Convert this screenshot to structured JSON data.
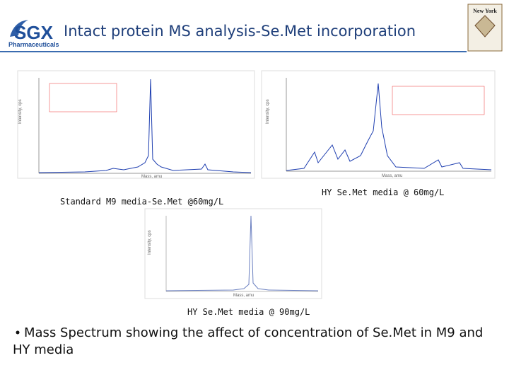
{
  "header": {
    "logo": "SGX",
    "logo_sub": "Pharmaceuticals",
    "title": "Intact protein MS analysis-Se.Met incorporation",
    "badge": "New York"
  },
  "panels": [
    {
      "caption": "Standard M9 media-Se.Met @60mg/L",
      "x_label": "Mass, amu",
      "y_label": "Intensity, cps"
    },
    {
      "caption": "HY Se.Met media @ 60mg/L",
      "x_label": "Mass, amu",
      "y_label": "Intensity, cps"
    },
    {
      "caption": "HY Se.Met media @ 90mg/L",
      "x_label": "Mass, amu",
      "y_label": "Intensity, cps"
    }
  ],
  "bullet": "Mass Spectrum showing the affect of concentration of Se.Met in M9 and HY media"
}
